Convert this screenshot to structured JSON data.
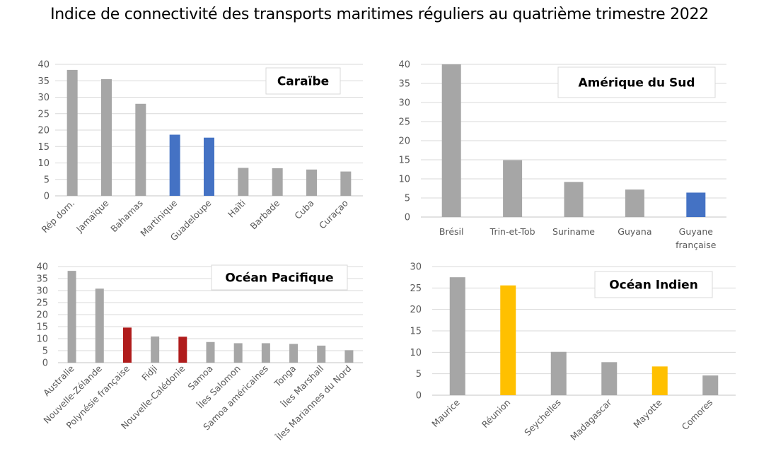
{
  "title": "Indice de connectivité des transports maritimes réguliers au quatrième trimestre 2022",
  "colors": {
    "default": "#a6a6a6",
    "blue": "#4472c4",
    "red": "#b01c1c",
    "yellow": "#ffc000"
  },
  "chart_data": [
    {
      "type": "bar",
      "title": "Caraïbe",
      "categories": [
        "Rép dom.",
        "Jamaïque",
        "Bahamas",
        "Martinique",
        "Guadeloupe",
        "Haïti",
        "Barbade",
        "Cuba",
        "Curaçao"
      ],
      "values": [
        38.3,
        35.5,
        28.0,
        18.6,
        17.7,
        8.5,
        8.4,
        8.0,
        7.4
      ],
      "highlight": [
        "default",
        "default",
        "default",
        "blue",
        "blue",
        "default",
        "default",
        "default",
        "default"
      ],
      "yticks": [
        0,
        5,
        10,
        15,
        20,
        25,
        30,
        35,
        40
      ],
      "ylim": [
        0,
        40
      ],
      "label_rotation": "diagonal",
      "grid": true,
      "xlabel": "",
      "ylabel": ""
    },
    {
      "type": "bar",
      "title": "Amérique du Sud",
      "categories": [
        "Brésil",
        "Trin-et-Tob",
        "Suriname",
        "Guyana",
        "Guyane|française"
      ],
      "values": [
        40,
        14.9,
        9.2,
        7.2,
        6.4
      ],
      "highlight": [
        "default",
        "default",
        "default",
        "default",
        "blue"
      ],
      "yticks": [
        0,
        5,
        10,
        15,
        20,
        25,
        30,
        35,
        40
      ],
      "ylim": [
        0,
        40
      ],
      "label_rotation": "horizontal",
      "grid": true,
      "xlabel": "",
      "ylabel": ""
    },
    {
      "type": "bar",
      "title": "Océan Pacifique",
      "categories": [
        "Australie",
        "Nouvelle-Zélande",
        "Polynésie française",
        "Fidji",
        "Nouvelle-Calédonie",
        "Samoa",
        "Îles Salomon",
        "Samoa américaines",
        "Tonga",
        "Îles Marshall",
        "Îles Mariannes du Nord"
      ],
      "values": [
        38.2,
        30.8,
        14.6,
        10.9,
        10.8,
        8.6,
        8.1,
        8.1,
        7.8,
        7.1,
        5.2
      ],
      "highlight": [
        "default",
        "default",
        "red",
        "default",
        "red",
        "default",
        "default",
        "default",
        "default",
        "default",
        "default"
      ],
      "yticks": [
        0,
        5,
        10,
        15,
        20,
        25,
        30,
        35,
        40
      ],
      "ylim": [
        0,
        40
      ],
      "label_rotation": "diagonal",
      "grid": true,
      "xlabel": "",
      "ylabel": ""
    },
    {
      "type": "bar",
      "title": "Océan Indien",
      "categories": [
        "Maurice",
        "Réunion",
        "Seychelles",
        "Madagascar",
        "Mayotte",
        "Comores"
      ],
      "values": [
        27.5,
        25.6,
        10.1,
        7.7,
        6.7,
        4.6
      ],
      "highlight": [
        "default",
        "yellow",
        "default",
        "default",
        "yellow",
        "default"
      ],
      "yticks": [
        0,
        5,
        10,
        15,
        20,
        25,
        30
      ],
      "ylim": [
        0,
        30
      ],
      "label_rotation": "diagonal",
      "grid": true,
      "xlabel": "",
      "ylabel": ""
    }
  ]
}
